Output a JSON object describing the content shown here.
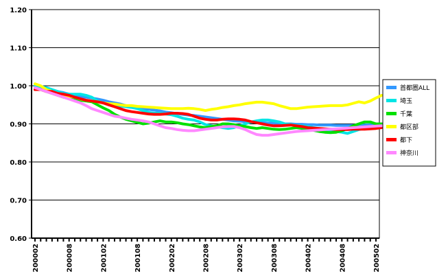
{
  "chart_data": {
    "type": "line",
    "title": "",
    "xlabel": "",
    "ylabel": "",
    "ylim": [
      0.6,
      1.2
    ],
    "yticks": [
      "0.60",
      "0.70",
      "0.80",
      "0.90",
      "1.00",
      "1.10",
      "1.20"
    ],
    "x_tick_labels": [
      "200002",
      "200008",
      "200102",
      "200108",
      "200202",
      "200208",
      "200302",
      "200308",
      "200402",
      "200408",
      "200502"
    ],
    "x_start": "2000-02",
    "x_end": "2005-02",
    "grid": "horizontal",
    "legend_position": "right",
    "series": [
      {
        "name": "首都圏ALL",
        "color": "#3399ff",
        "values": [
          0.995,
          0.993,
          0.99,
          0.988,
          0.985,
          0.982,
          0.978,
          0.975,
          0.972,
          0.97,
          0.968,
          0.965,
          0.962,
          0.958,
          0.955,
          0.952,
          0.948,
          0.945,
          0.942,
          0.94,
          0.938,
          0.936,
          0.934,
          0.931,
          0.929,
          0.927,
          0.925,
          0.923,
          0.922,
          0.92,
          0.918,
          0.916,
          0.914,
          0.912,
          0.91,
          0.908,
          0.907,
          0.906,
          0.905,
          0.904,
          0.903,
          0.902,
          0.902,
          0.901,
          0.9,
          0.9,
          0.899,
          0.899,
          0.898,
          0.898,
          0.897,
          0.897,
          0.897,
          0.896,
          0.896,
          0.896,
          0.896,
          0.897,
          0.897,
          0.898,
          0.899,
          0.9
        ]
      },
      {
        "name": "埼玉",
        "color": "#00e5e5",
        "values": [
          1.0,
          0.998,
          0.995,
          0.99,
          0.985,
          0.98,
          0.978,
          0.978,
          0.978,
          0.975,
          0.97,
          0.96,
          0.955,
          0.95,
          0.948,
          0.947,
          0.945,
          0.943,
          0.94,
          0.935,
          0.93,
          0.928,
          0.928,
          0.926,
          0.924,
          0.92,
          0.915,
          0.912,
          0.91,
          0.905,
          0.898,
          0.895,
          0.892,
          0.89,
          0.888,
          0.89,
          0.895,
          0.9,
          0.905,
          0.908,
          0.91,
          0.91,
          0.908,
          0.905,
          0.9,
          0.898,
          0.896,
          0.895,
          0.893,
          0.89,
          0.888,
          0.885,
          0.882,
          0.88,
          0.878,
          0.875,
          0.88,
          0.885,
          0.888,
          0.89,
          0.895,
          0.9
        ]
      },
      {
        "name": "千葉",
        "color": "#00e000",
        "values": [
          0.99,
          0.99,
          0.985,
          0.98,
          0.975,
          0.97,
          0.968,
          0.965,
          0.962,
          0.96,
          0.958,
          0.95,
          0.942,
          0.935,
          0.925,
          0.918,
          0.912,
          0.908,
          0.904,
          0.9,
          0.902,
          0.905,
          0.908,
          0.905,
          0.905,
          0.903,
          0.9,
          0.898,
          0.895,
          0.892,
          0.89,
          0.893,
          0.895,
          0.9,
          0.9,
          0.898,
          0.895,
          0.893,
          0.89,
          0.888,
          0.89,
          0.888,
          0.886,
          0.885,
          0.886,
          0.888,
          0.89,
          0.888,
          0.886,
          0.883,
          0.88,
          0.878,
          0.877,
          0.878,
          0.882,
          0.888,
          0.895,
          0.9,
          0.905,
          0.905,
          0.9,
          0.9
        ]
      },
      {
        "name": "都区部",
        "color": "#ffff00",
        "values": [
          1.005,
          1.0,
          0.99,
          0.985,
          0.978,
          0.975,
          0.972,
          0.97,
          0.965,
          0.962,
          0.96,
          0.958,
          0.955,
          0.953,
          0.952,
          0.95,
          0.948,
          0.948,
          0.946,
          0.945,
          0.944,
          0.943,
          0.942,
          0.941,
          0.94,
          0.94,
          0.94,
          0.941,
          0.94,
          0.938,
          0.935,
          0.938,
          0.94,
          0.943,
          0.945,
          0.948,
          0.95,
          0.953,
          0.955,
          0.957,
          0.957,
          0.955,
          0.953,
          0.948,
          0.944,
          0.94,
          0.94,
          0.942,
          0.944,
          0.945,
          0.946,
          0.947,
          0.948,
          0.948,
          0.948,
          0.95,
          0.954,
          0.958,
          0.955,
          0.96,
          0.968,
          0.975
        ]
      },
      {
        "name": "都下",
        "color": "#ff0000",
        "values": [
          0.99,
          0.99,
          0.985,
          0.985,
          0.98,
          0.978,
          0.975,
          0.97,
          0.966,
          0.962,
          0.96,
          0.958,
          0.955,
          0.95,
          0.945,
          0.94,
          0.935,
          0.932,
          0.93,
          0.928,
          0.926,
          0.925,
          0.925,
          0.926,
          0.928,
          0.928,
          0.927,
          0.925,
          0.92,
          0.915,
          0.912,
          0.91,
          0.91,
          0.912,
          0.913,
          0.913,
          0.912,
          0.91,
          0.906,
          0.903,
          0.9,
          0.897,
          0.895,
          0.895,
          0.896,
          0.897,
          0.895,
          0.893,
          0.89,
          0.889,
          0.888,
          0.887,
          0.886,
          0.885,
          0.885,
          0.885,
          0.886,
          0.886,
          0.886,
          0.887,
          0.888,
          0.89
        ]
      },
      {
        "name": "神奈川",
        "color": "#ff88ff",
        "values": [
          0.995,
          0.99,
          0.985,
          0.98,
          0.975,
          0.97,
          0.965,
          0.96,
          0.955,
          0.948,
          0.94,
          0.935,
          0.93,
          0.925,
          0.92,
          0.918,
          0.915,
          0.912,
          0.91,
          0.908,
          0.905,
          0.9,
          0.895,
          0.89,
          0.888,
          0.885,
          0.883,
          0.882,
          0.882,
          0.884,
          0.886,
          0.888,
          0.89,
          0.892,
          0.893,
          0.893,
          0.89,
          0.885,
          0.878,
          0.872,
          0.87,
          0.87,
          0.872,
          0.874,
          0.876,
          0.878,
          0.88,
          0.881,
          0.882,
          0.883,
          0.884,
          0.885,
          0.886,
          0.887,
          0.888,
          0.889,
          0.89,
          0.891,
          0.892,
          0.893,
          0.894,
          0.895
        ]
      }
    ]
  }
}
